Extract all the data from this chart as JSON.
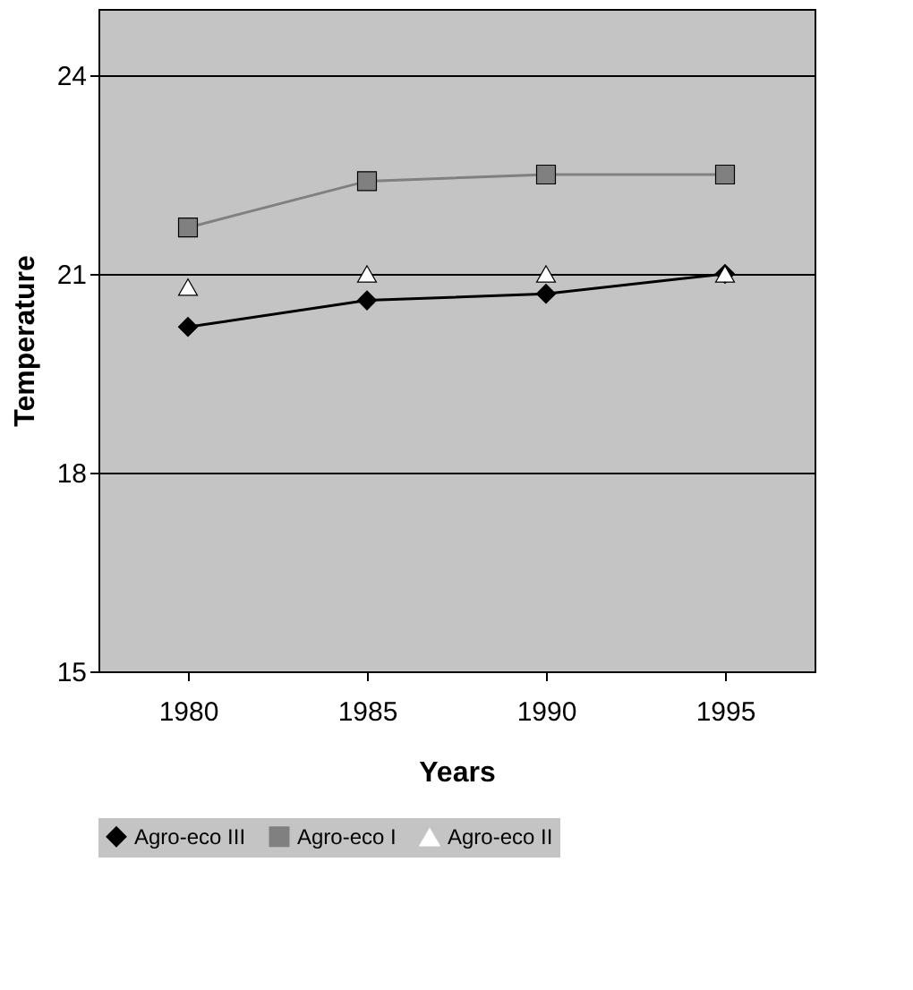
{
  "chart_data": {
    "type": "line",
    "xlabel": "Years",
    "ylabel": "Temperature",
    "categories": [
      "1980",
      "1985",
      "1990",
      "1995"
    ],
    "series": [
      {
        "name": "Agro-eco III",
        "color": "#000000",
        "marker": "diamond",
        "values": [
          20.2,
          20.6,
          20.7,
          21.0
        ]
      },
      {
        "name": "Agro-eco I",
        "color": "#808080",
        "marker": "square",
        "values": [
          21.7,
          22.4,
          22.5,
          22.5
        ]
      },
      {
        "name": "Agro-eco II",
        "type": "scatter",
        "color": "#ffffff",
        "marker": "triangle",
        "values": [
          20.8,
          21.0,
          21.0,
          21.0
        ]
      }
    ],
    "ylim": [
      15,
      25
    ],
    "yticks": [
      15,
      18,
      21,
      24
    ],
    "grid": "y",
    "legend": "bottom",
    "line_style": "solid"
  }
}
